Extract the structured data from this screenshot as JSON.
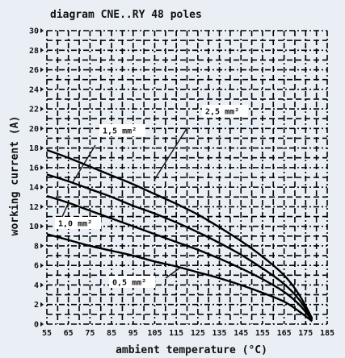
{
  "chart_data": {
    "type": "line",
    "title": "diagram CNE..RY 48 poles",
    "xlabel": "ambient temperature (°C)",
    "ylabel": "working current (A)",
    "xlim": [
      55,
      185
    ],
    "ylim": [
      0,
      30
    ],
    "x_ticks": [
      "55",
      "65",
      "75",
      "85",
      "95",
      "105",
      "115",
      "125",
      "135",
      "145",
      "155",
      "165",
      "175",
      "185"
    ],
    "y_ticks": [
      "0",
      "2",
      "4",
      "6",
      "8",
      "10",
      "12",
      "14",
      "16",
      "18",
      "20",
      "22",
      "24",
      "26",
      "28",
      "30"
    ],
    "grid": true,
    "colors": {
      "background": "#e9eff5",
      "grid": "#000000",
      "line": "#000000",
      "label_bg": "#ffffff"
    },
    "series": [
      {
        "name": "0,5 mm²",
        "points": [
          [
            55,
            9.2
          ],
          [
            65,
            8.6
          ],
          [
            75,
            8.0
          ],
          [
            85,
            7.5
          ],
          [
            95,
            7.0
          ],
          [
            105,
            6.4
          ],
          [
            115,
            5.9
          ],
          [
            125,
            5.3
          ],
          [
            135,
            4.7
          ],
          [
            145,
            4.0
          ],
          [
            155,
            3.2
          ],
          [
            165,
            2.3
          ],
          [
            172,
            1.3
          ],
          [
            178,
            0.3
          ]
        ]
      },
      {
        "name": "1,0 mm²",
        "points": [
          [
            55,
            13.1
          ],
          [
            65,
            12.4
          ],
          [
            75,
            11.6
          ],
          [
            85,
            10.8
          ],
          [
            95,
            10.0
          ],
          [
            105,
            9.2
          ],
          [
            115,
            8.4
          ],
          [
            125,
            7.6
          ],
          [
            135,
            6.7
          ],
          [
            145,
            5.7
          ],
          [
            155,
            4.6
          ],
          [
            165,
            3.3
          ],
          [
            172,
            2.0
          ],
          [
            178,
            0.4
          ]
        ]
      },
      {
        "name": "1,5 mm²",
        "points": [
          [
            55,
            15.3
          ],
          [
            65,
            14.6
          ],
          [
            75,
            13.8
          ],
          [
            85,
            13.0
          ],
          [
            95,
            12.1
          ],
          [
            105,
            11.3
          ],
          [
            115,
            10.4
          ],
          [
            125,
            9.4
          ],
          [
            135,
            8.3
          ],
          [
            145,
            7.1
          ],
          [
            155,
            5.7
          ],
          [
            165,
            4.1
          ],
          [
            172,
            2.5
          ],
          [
            178,
            0.5
          ]
        ]
      },
      {
        "name": "2,5 mm²",
        "points": [
          [
            55,
            17.8
          ],
          [
            65,
            17.0
          ],
          [
            75,
            16.1
          ],
          [
            85,
            15.2
          ],
          [
            95,
            14.3
          ],
          [
            105,
            13.3
          ],
          [
            115,
            12.3
          ],
          [
            125,
            11.2
          ],
          [
            135,
            9.9
          ],
          [
            145,
            8.5
          ],
          [
            155,
            6.9
          ],
          [
            165,
            5.0
          ],
          [
            172,
            3.0
          ],
          [
            178,
            0.6
          ]
        ]
      }
    ],
    "annotations": [
      {
        "text": "2,5 mm²",
        "series": "2,5 mm²"
      },
      {
        "text": "1,5 mm²",
        "series": "1,5 mm²"
      },
      {
        "text": "1,0 mm²",
        "series": "1,0 mm²"
      },
      {
        "text": "0,5 mm²",
        "series": "0,5 mm²"
      }
    ]
  }
}
